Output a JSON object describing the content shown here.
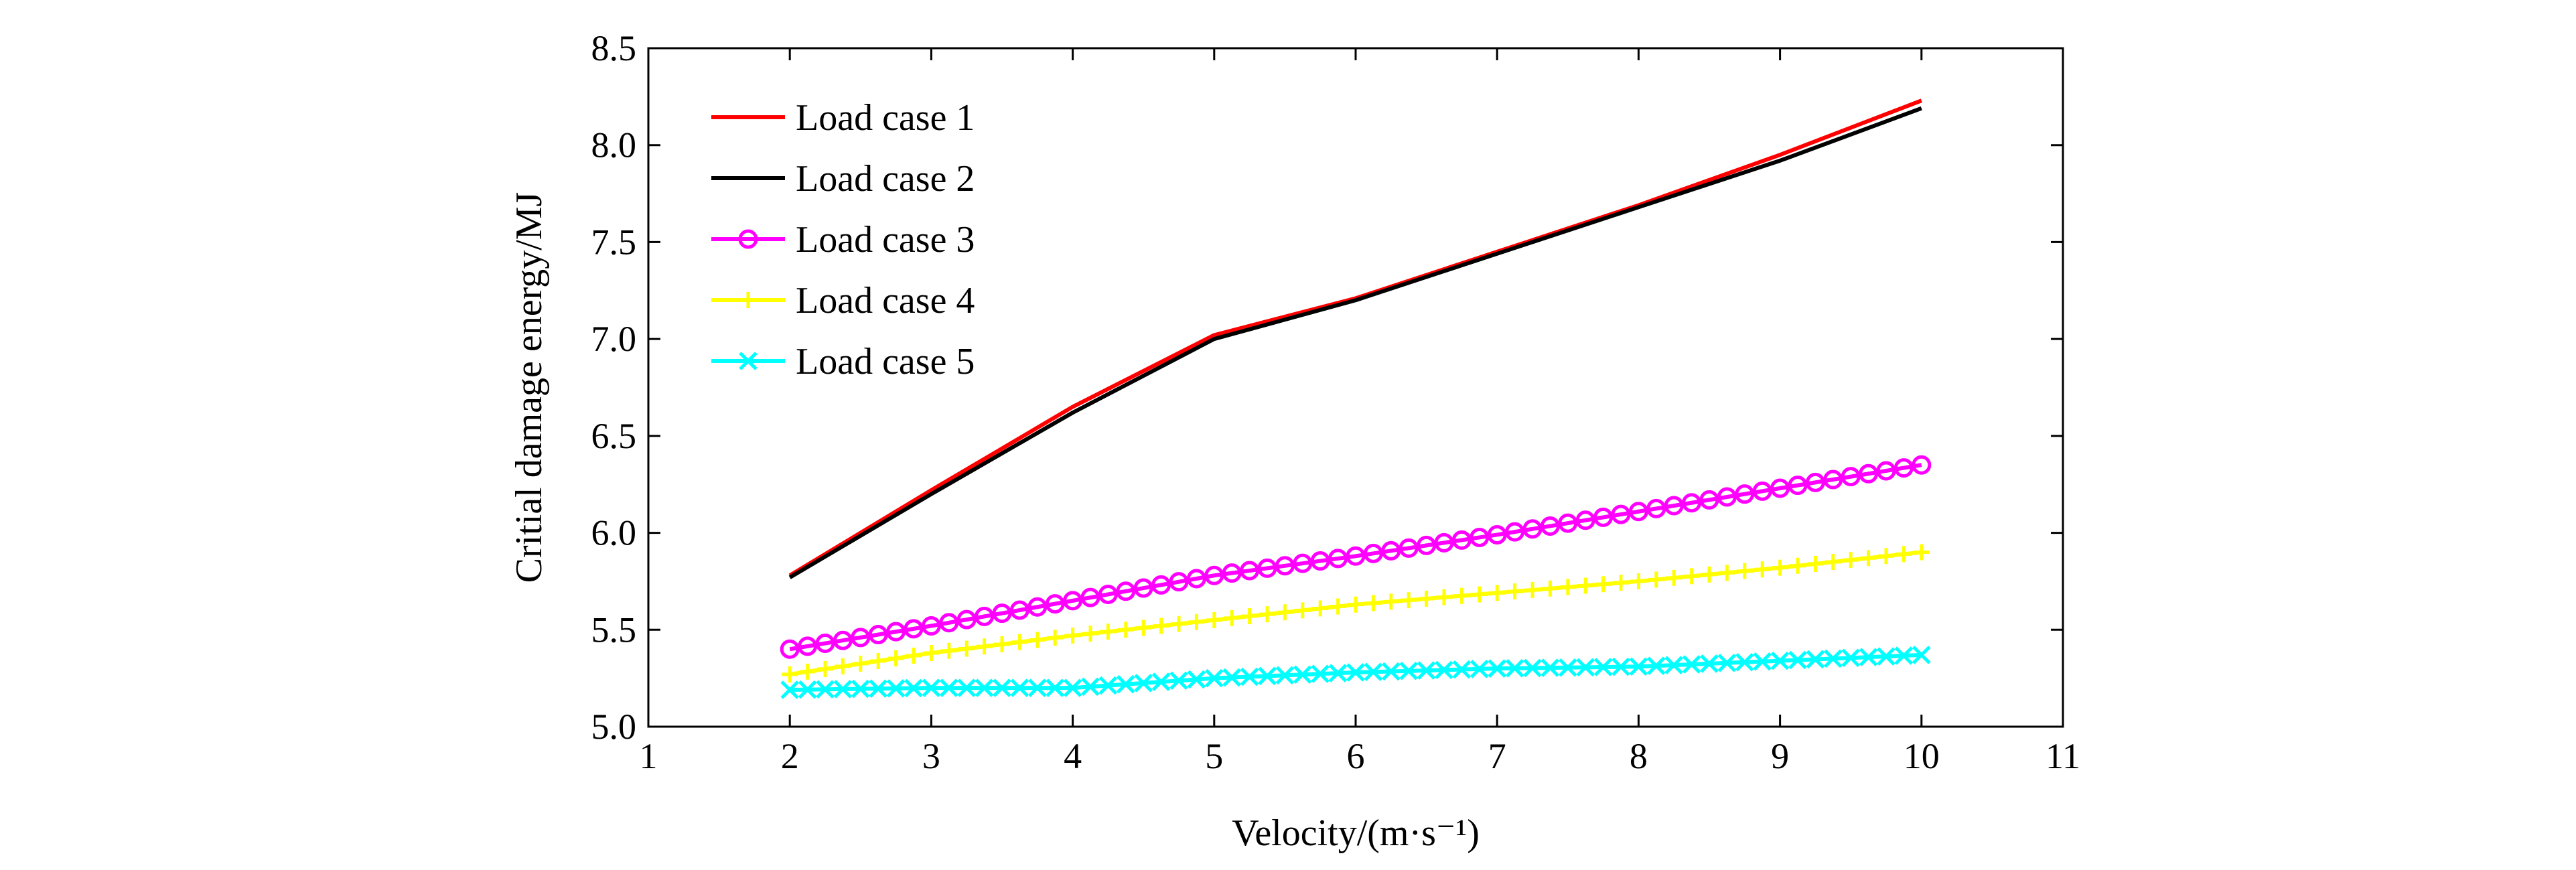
{
  "chart_data": {
    "type": "line",
    "title": "",
    "xlabel": "Velocity/(m·s⁻¹)",
    "ylabel": "Critial damage energy/MJ",
    "xlim": [
      1,
      11
    ],
    "ylim": [
      5.0,
      8.5
    ],
    "xticks": [
      "1",
      "2",
      "3",
      "4",
      "5",
      "6",
      "7",
      "8",
      "9",
      "10",
      "11"
    ],
    "yticks": [
      "5.0",
      "5.5",
      "6.0",
      "6.5",
      "7.0",
      "7.5",
      "8.0",
      "8.5"
    ],
    "grid": false,
    "legend_position": "top-left",
    "x": [
      2,
      3,
      4,
      5,
      6,
      7,
      8,
      9,
      10
    ],
    "series": [
      {
        "name": "Load case 1",
        "color": "#ff0000",
        "marker": "none",
        "values": [
          5.78,
          6.22,
          6.65,
          7.02,
          7.21,
          7.45,
          7.69,
          7.95,
          8.23
        ]
      },
      {
        "name": "Load case 2",
        "color": "#000000",
        "marker": "none",
        "values": [
          5.77,
          6.2,
          6.62,
          7.0,
          7.2,
          7.44,
          7.68,
          7.92,
          8.19
        ]
      },
      {
        "name": "Load case 3",
        "color": "#ff00ff",
        "marker": "circle",
        "values": [
          5.4,
          5.52,
          5.65,
          5.78,
          5.88,
          5.99,
          6.11,
          6.23,
          6.35
        ]
      },
      {
        "name": "Load case 4",
        "color": "#ffff00",
        "marker": "plus",
        "values": [
          5.27,
          5.38,
          5.47,
          5.55,
          5.63,
          5.69,
          5.75,
          5.82,
          5.9
        ]
      },
      {
        "name": "Load case 5",
        "color": "#00ffff",
        "marker": "x",
        "values": [
          5.19,
          5.2,
          5.2,
          5.25,
          5.28,
          5.3,
          5.31,
          5.34,
          5.37
        ]
      }
    ]
  }
}
